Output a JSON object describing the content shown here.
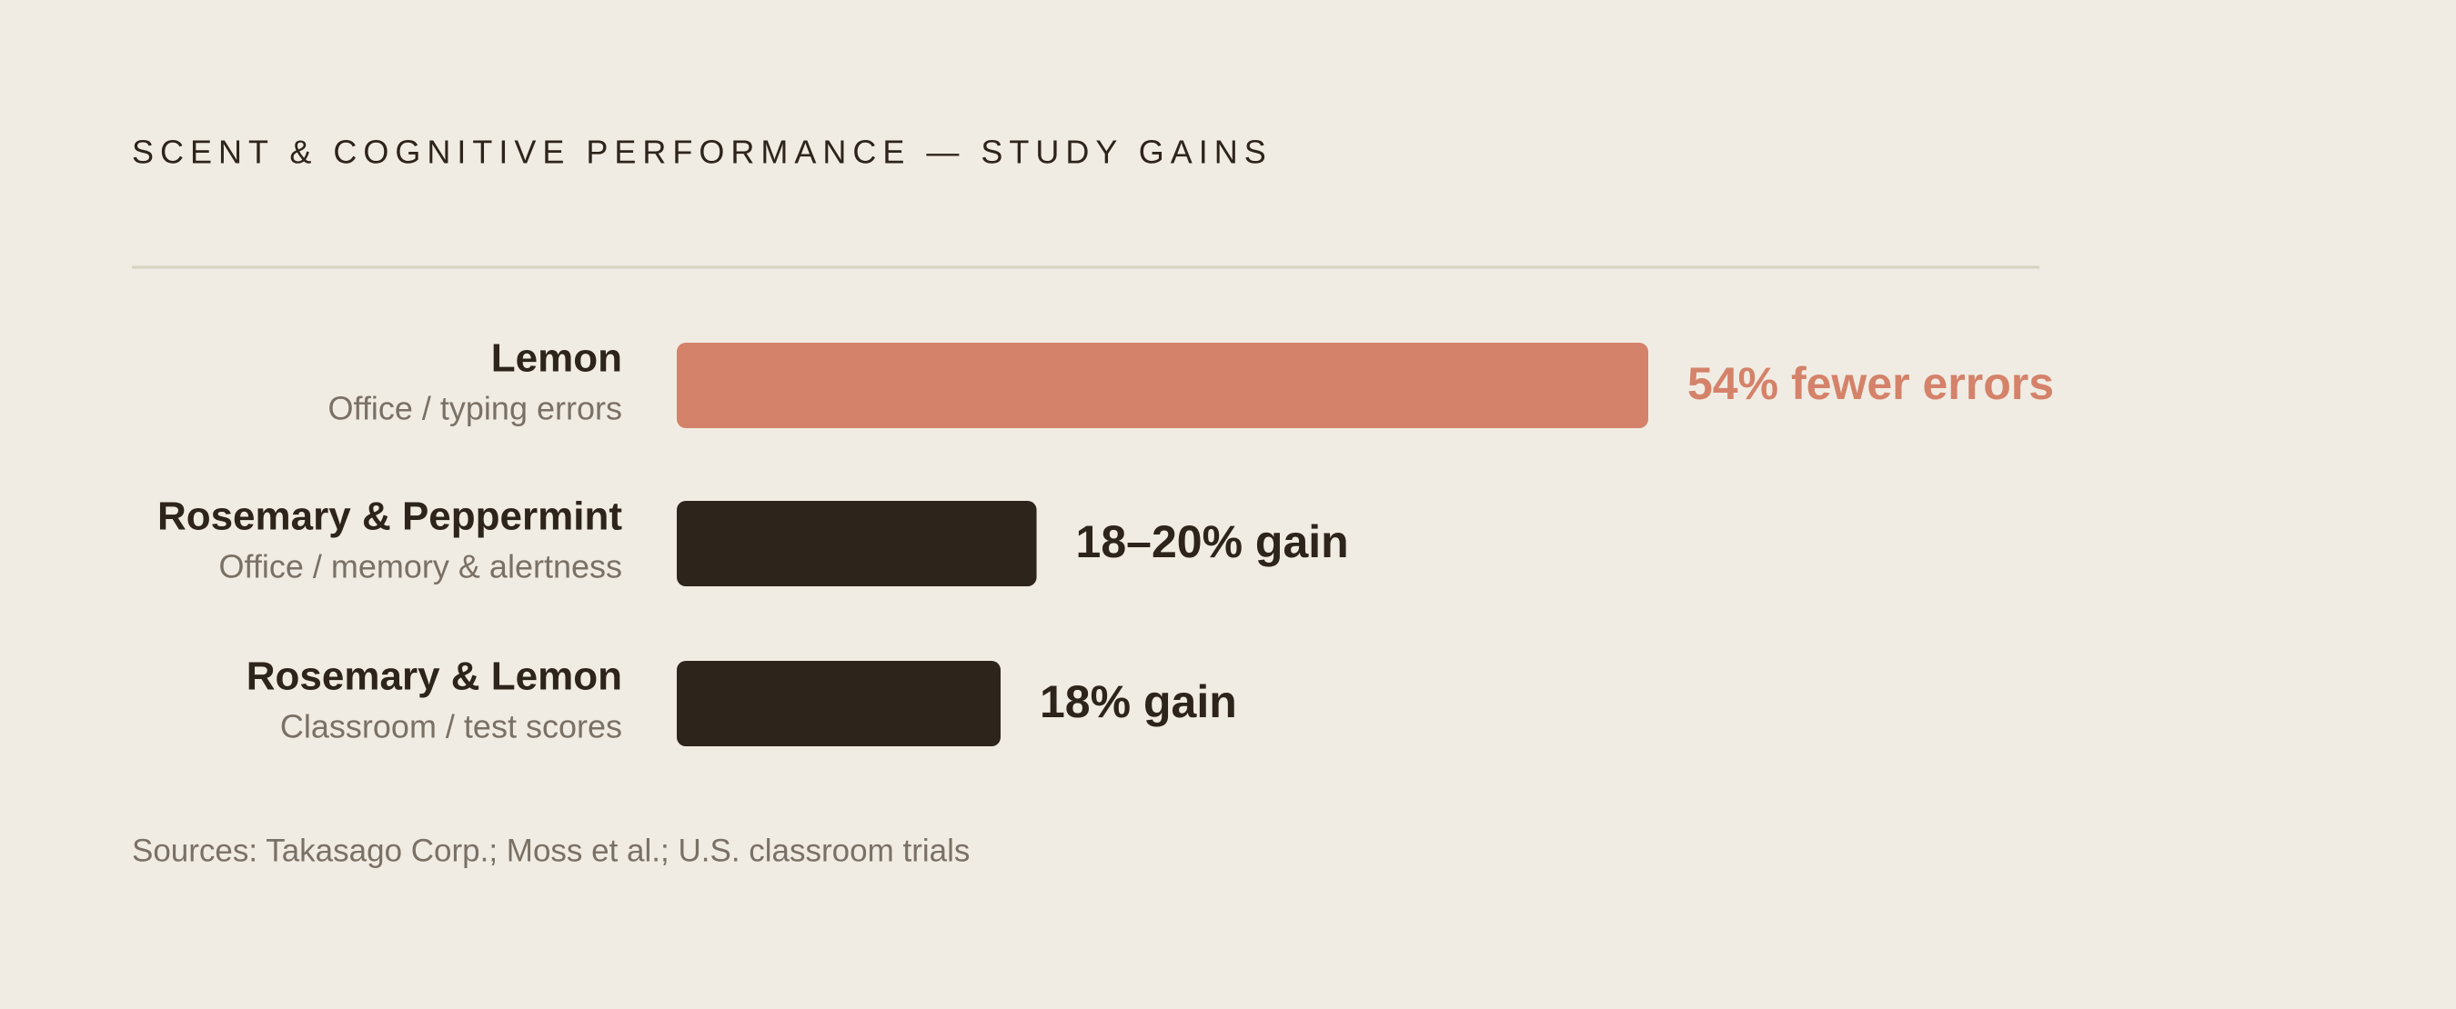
{
  "chart_data": {
    "type": "bar",
    "orientation": "horizontal",
    "title": "SCENT & COGNITIVE PERFORMANCE — STUDY GAINS",
    "categories": [
      "Lemon",
      "Rosemary & Peppermint",
      "Rosemary & Lemon"
    ],
    "category_notes": [
      "Office / typing errors",
      "Office / memory & alertness",
      "Classroom / test scores"
    ],
    "values": [
      54,
      20,
      18
    ],
    "value_labels": [
      "54% fewer errors",
      "18–20% gain",
      "18% gain"
    ],
    "colors": [
      "#d4826a",
      "#2d241b",
      "#2d241b"
    ],
    "xlim": [
      0,
      54
    ],
    "source": "Sources: Takasago Corp.; Moss et al.; U.S. classroom trials"
  }
}
